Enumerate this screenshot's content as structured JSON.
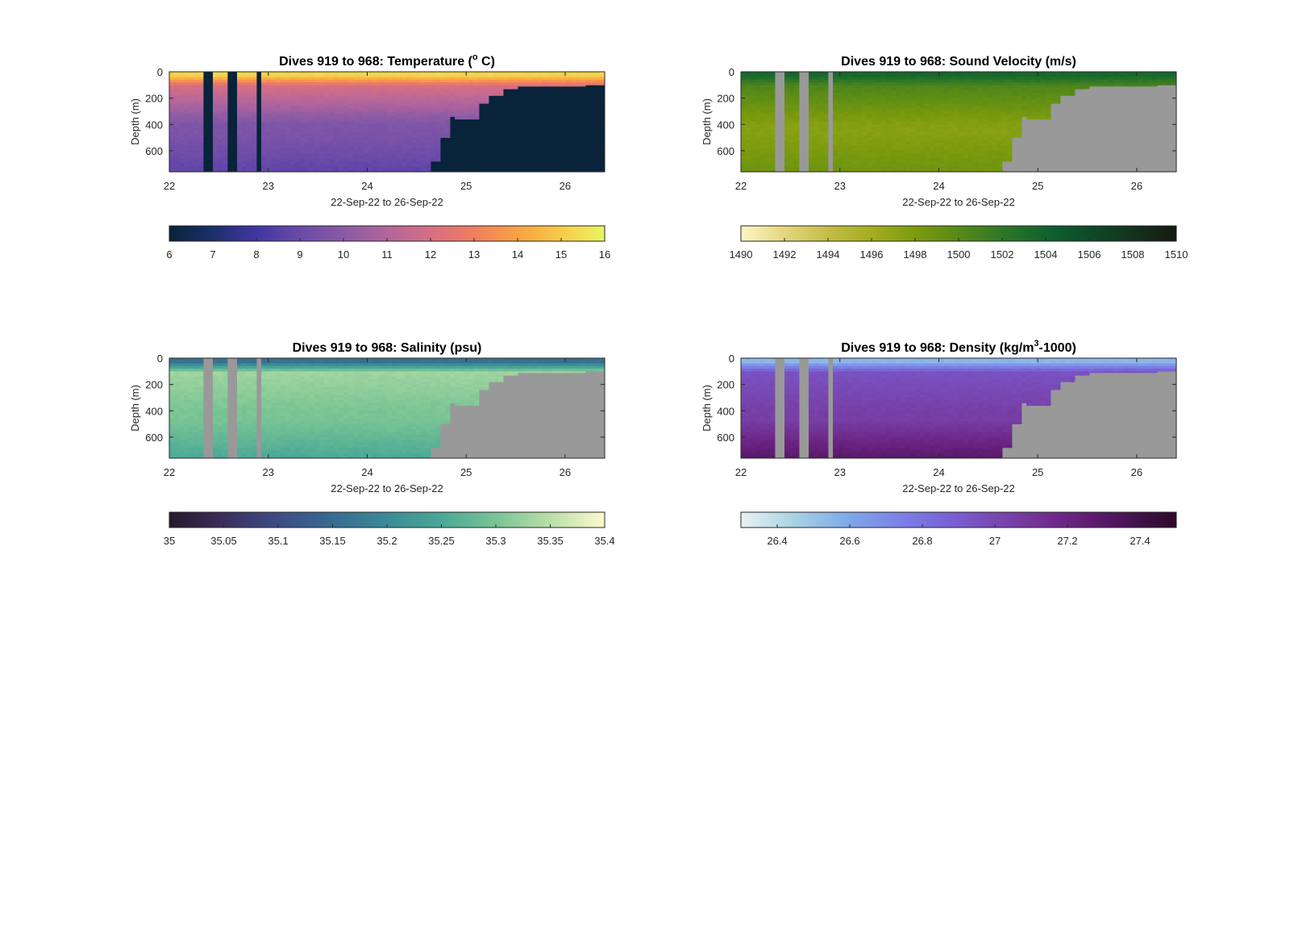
{
  "figure": {
    "background": "#ffffff"
  },
  "chart_data": [
    {
      "type": "heatmap",
      "title": "Dives 919 to 968: Temperature (",
      "title_unit_super": "o",
      "title_unit_tail": " C)",
      "xlabel": "22-Sep-22 to 26-Sep-22",
      "ylabel": "Depth (m)",
      "x_ticks": [
        "22",
        "23",
        "24",
        "25",
        "26"
      ],
      "y_ticks": [
        "0",
        "200",
        "400",
        "600"
      ],
      "xlim": [
        22,
        26.4
      ],
      "ylim": [
        0,
        760
      ],
      "missing_color": "#08233a",
      "gaps": [
        [
          22.35,
          22.43
        ],
        [
          22.61,
          22.69
        ],
        [
          22.87,
          22.95
        ]
      ],
      "depth_limit": [
        [
          24.6,
          760
        ],
        [
          24.65,
          680
        ],
        [
          24.73,
          500
        ],
        [
          24.82,
          340
        ],
        [
          24.9,
          360
        ],
        [
          25.15,
          240
        ],
        [
          25.25,
          180
        ],
        [
          25.35,
          130
        ],
        [
          25.5,
          110
        ],
        [
          26.2,
          100
        ],
        [
          26.4,
          100
        ]
      ],
      "colorbar": {
        "ticks": [
          "6",
          "7",
          "8",
          "9",
          "10",
          "11",
          "12",
          "13",
          "14",
          "15",
          "16"
        ],
        "range": [
          6,
          16
        ],
        "colors": [
          "#08233a",
          "#1c2f6b",
          "#4136a2",
          "#6a4aa9",
          "#8a5aa6",
          "#b2659c",
          "#d76f84",
          "#ef7e5f",
          "#f9a243",
          "#f8cb47",
          "#e8f563"
        ]
      },
      "field": {
        "surface_value": 15.2,
        "thermocline_value": 12.0,
        "deep_value": 9.6,
        "bottom_value": 8.7
      }
    },
    {
      "type": "heatmap",
      "title": "Dives 919 to 968: Sound Velocity (m/s)",
      "xlabel": "22-Sep-22 to 26-Sep-22",
      "ylabel": "Depth (m)",
      "x_ticks": [
        "22",
        "23",
        "24",
        "25",
        "26"
      ],
      "y_ticks": [
        "0",
        "200",
        "400",
        "600"
      ],
      "xlim": [
        22,
        26.4
      ],
      "ylim": [
        0,
        760
      ],
      "missing_color": "#999999",
      "gaps": [
        [
          22.35,
          22.43
        ],
        [
          22.61,
          22.69
        ],
        [
          22.87,
          22.95
        ]
      ],
      "depth_limit": [
        [
          24.6,
          760
        ],
        [
          24.65,
          680
        ],
        [
          24.73,
          500
        ],
        [
          24.82,
          340
        ],
        [
          24.9,
          360
        ],
        [
          25.15,
          240
        ],
        [
          25.25,
          180
        ],
        [
          25.35,
          130
        ],
        [
          25.5,
          110
        ],
        [
          26.2,
          100
        ],
        [
          26.4,
          100
        ]
      ],
      "colorbar": {
        "ticks": [
          "1490",
          "1492",
          "1494",
          "1496",
          "1498",
          "1500",
          "1502",
          "1504",
          "1506",
          "1508",
          "1510"
        ],
        "range": [
          1490,
          1510
        ],
        "colors": [
          "#fdf6c6",
          "#e4d67e",
          "#c6bd46",
          "#a4ad1f",
          "#7d9b0e",
          "#578a17",
          "#2f7727",
          "#10632e",
          "#0d4b29",
          "#15321e",
          "#141a0f"
        ]
      },
      "field": {
        "surface_value": 1503.5,
        "thermocline_value": 1500.5,
        "deep_value": 1497.5,
        "bottom_value": 1498.8
      }
    },
    {
      "type": "heatmap",
      "title": "Dives 919 to 968: Salinity (psu)",
      "xlabel": "22-Sep-22 to 26-Sep-22",
      "ylabel": "Depth (m)",
      "x_ticks": [
        "22",
        "23",
        "24",
        "25",
        "26"
      ],
      "y_ticks": [
        "0",
        "200",
        "400",
        "600"
      ],
      "xlim": [
        22,
        26.4
      ],
      "ylim": [
        0,
        760
      ],
      "missing_color": "#999999",
      "gaps": [
        [
          22.35,
          22.43
        ],
        [
          22.61,
          22.69
        ],
        [
          22.87,
          22.95
        ]
      ],
      "depth_limit": [
        [
          24.6,
          760
        ],
        [
          24.65,
          680
        ],
        [
          24.73,
          500
        ],
        [
          24.82,
          340
        ],
        [
          24.9,
          360
        ],
        [
          25.15,
          240
        ],
        [
          25.25,
          180
        ],
        [
          25.35,
          130
        ],
        [
          25.5,
          110
        ],
        [
          26.2,
          100
        ],
        [
          26.4,
          100
        ]
      ],
      "colorbar": {
        "ticks": [
          "35",
          "35.05",
          "35.1",
          "35.15",
          "35.2",
          "35.25",
          "35.3",
          "35.35",
          "35.4"
        ],
        "range": [
          35,
          35.4
        ],
        "colors": [
          "#241a2c",
          "#3c2f5c",
          "#3d4c86",
          "#376b92",
          "#3b8a96",
          "#4ba897",
          "#79c494",
          "#b9dfa8",
          "#fdfacd"
        ]
      },
      "field": {
        "surface_value": 35.16,
        "thermocline_value": 35.33,
        "deep_value": 35.3,
        "bottom_value": 35.25
      }
    },
    {
      "type": "heatmap",
      "title": "Dives 919 to 968: Density (kg/m",
      "title_unit_super": "3",
      "title_unit_tail": "-1000)",
      "xlabel": "22-Sep-22 to 26-Sep-22",
      "ylabel": "Depth (m)",
      "x_ticks": [
        "22",
        "23",
        "24",
        "25",
        "26"
      ],
      "y_ticks": [
        "0",
        "200",
        "400",
        "600"
      ],
      "xlim": [
        22,
        26.4
      ],
      "ylim": [
        0,
        760
      ],
      "missing_color": "#999999",
      "gaps": [
        [
          22.35,
          22.43
        ],
        [
          22.61,
          22.69
        ],
        [
          22.87,
          22.95
        ]
      ],
      "depth_limit": [
        [
          24.6,
          760
        ],
        [
          24.65,
          680
        ],
        [
          24.73,
          500
        ],
        [
          24.82,
          340
        ],
        [
          24.9,
          360
        ],
        [
          25.15,
          240
        ],
        [
          25.25,
          180
        ],
        [
          25.35,
          130
        ],
        [
          25.5,
          110
        ],
        [
          26.2,
          100
        ],
        [
          26.4,
          100
        ]
      ],
      "colorbar": {
        "ticks": [
          "26.4",
          "26.6",
          "26.8",
          "27",
          "27.2",
          "27.4"
        ],
        "tick_values": [
          26.4,
          26.6,
          26.8,
          27,
          27.2,
          27.4
        ],
        "range": [
          26.3,
          27.5
        ],
        "colors": [
          "#e8f3f4",
          "#a6d1e3",
          "#7ea8e9",
          "#7b7de6",
          "#7a5bcf",
          "#773fa6",
          "#6c2382",
          "#4c1459",
          "#2c0a2c"
        ]
      },
      "field": {
        "surface_value": 26.55,
        "thermocline_value": 26.95,
        "deep_value": 27.05,
        "bottom_value": 27.3
      }
    }
  ]
}
